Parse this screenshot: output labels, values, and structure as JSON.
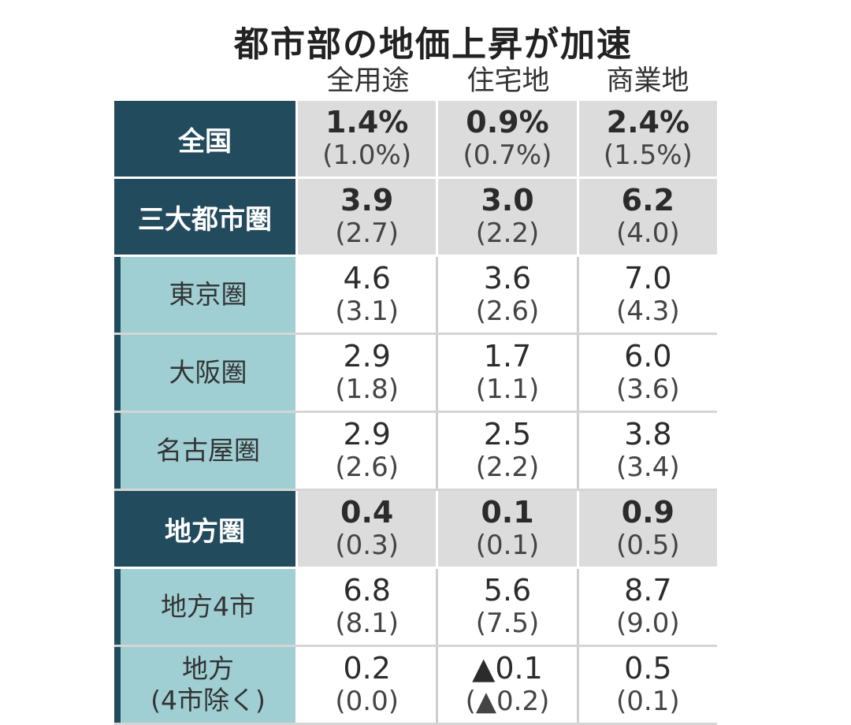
{
  "chart_data": {
    "type": "table",
    "title": "都市部の地価上昇が加速",
    "columns": [
      "全用途",
      "住宅地",
      "商業地"
    ],
    "rows": [
      {
        "label": "全国",
        "level": "major",
        "values": [
          "1.4%",
          "0.9%",
          "2.4%"
        ],
        "previous": [
          "(1.0%)",
          "(0.7%)",
          "(1.5%)"
        ]
      },
      {
        "label": "三大都市圏",
        "level": "major",
        "values": [
          "3.9",
          "3.0",
          "6.2"
        ],
        "previous": [
          "(2.7)",
          "(2.2)",
          "(4.0)"
        ]
      },
      {
        "label": "東京圏",
        "level": "minor",
        "values": [
          "4.6",
          "3.6",
          "7.0"
        ],
        "previous": [
          "(3.1)",
          "(2.6)",
          "(4.3)"
        ]
      },
      {
        "label": "大阪圏",
        "level": "minor",
        "values": [
          "2.9",
          "1.7",
          "6.0"
        ],
        "previous": [
          "(1.8)",
          "(1.1)",
          "(3.6)"
        ]
      },
      {
        "label": "名古屋圏",
        "level": "minor",
        "values": [
          "2.9",
          "2.5",
          "3.8"
        ],
        "previous": [
          "(2.6)",
          "(2.2)",
          "(3.4)"
        ]
      },
      {
        "label": "地方圏",
        "level": "major",
        "values": [
          "0.4",
          "0.1",
          "0.9"
        ],
        "previous": [
          "(0.3)",
          "(0.1)",
          "(0.5)"
        ]
      },
      {
        "label": "地方4市",
        "level": "minor",
        "values": [
          "6.8",
          "5.6",
          "8.7"
        ],
        "previous": [
          "(8.1)",
          "(7.5)",
          "(9.0)"
        ]
      },
      {
        "label": "地方",
        "label_line2": "(4市除く)",
        "level": "minor",
        "values": [
          "0.2",
          "▲0.1",
          "0.5"
        ],
        "previous": [
          "(0.0)",
          "(▲0.2)",
          "(0.1)"
        ]
      }
    ]
  },
  "colors": {
    "major_header": "#234b5e",
    "minor_header": "#9fcfd3",
    "major_cell": "#dcdcdc",
    "minor_cell": "#ffffff"
  }
}
